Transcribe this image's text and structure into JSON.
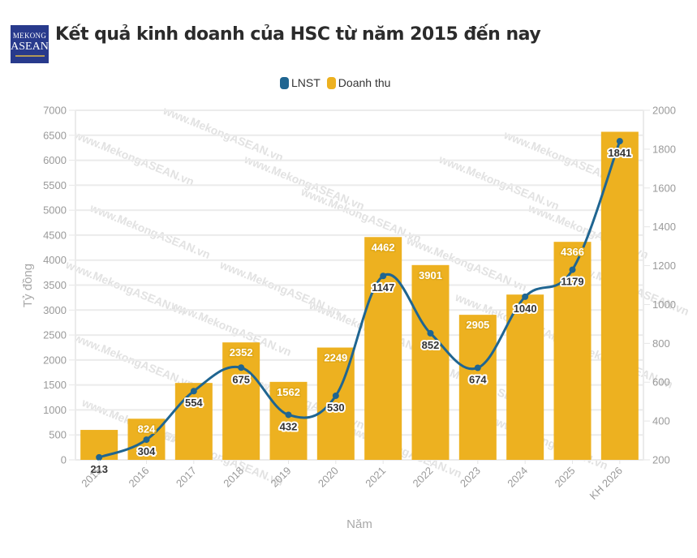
{
  "header": {
    "logo_line1": "MEKONG",
    "logo_line2": "ASEAN",
    "title": "Kết quả kinh doanh của HSC từ năm 2015 đến nay"
  },
  "watermark": "www.MekongASEAN.vn",
  "legend": [
    {
      "name": "LNST",
      "color": "#1f6591"
    },
    {
      "name": "Doanh thu",
      "color": "#edb120"
    }
  ],
  "chart_data": {
    "type": "bar+line",
    "title": "Kết quả kinh doanh của HSC từ năm 2015 đến nay",
    "xlabel": "Năm",
    "ylabel": "Tỷ đồng",
    "categories": [
      "2015",
      "2016",
      "2017",
      "2018",
      "2019",
      "2020",
      "2021",
      "2022",
      "2023",
      "2024",
      "2025",
      "KH 2026"
    ],
    "series": [
      {
        "name": "Doanh thu",
        "type": "bar",
        "axis": "left",
        "color": "#edb120",
        "values": [
          600,
          824,
          1540,
          2352,
          1562,
          2249,
          4462,
          3901,
          2905,
          3310,
          4366,
          6570
        ],
        "labels": [
          null,
          "824",
          null,
          "2352",
          "1562",
          "2249",
          "4462",
          "3901",
          "2905",
          null,
          "4366",
          null
        ]
      },
      {
        "name": "LNST",
        "type": "line",
        "axis": "right",
        "color": "#1f6591",
        "values": [
          213,
          304,
          554,
          675,
          432,
          530,
          1147,
          852,
          674,
          1040,
          1179,
          1841
        ],
        "labels": [
          "213",
          "304",
          "554",
          "675",
          "432",
          "530",
          "1147",
          "852",
          "674",
          "1040",
          "1179",
          "1841"
        ]
      }
    ],
    "y_left": {
      "min": 0,
      "max": 7000,
      "ticks": [
        0,
        500,
        1000,
        1500,
        2000,
        2500,
        3000,
        3500,
        4000,
        4500,
        5000,
        5500,
        6000,
        6500,
        7000
      ]
    },
    "y_right": {
      "min": 200,
      "max": 2000,
      "ticks": [
        200,
        400,
        600,
        800,
        1000,
        1200,
        1400,
        1600,
        1800,
        2000
      ]
    },
    "grid": true,
    "legend_position": "top-center"
  }
}
